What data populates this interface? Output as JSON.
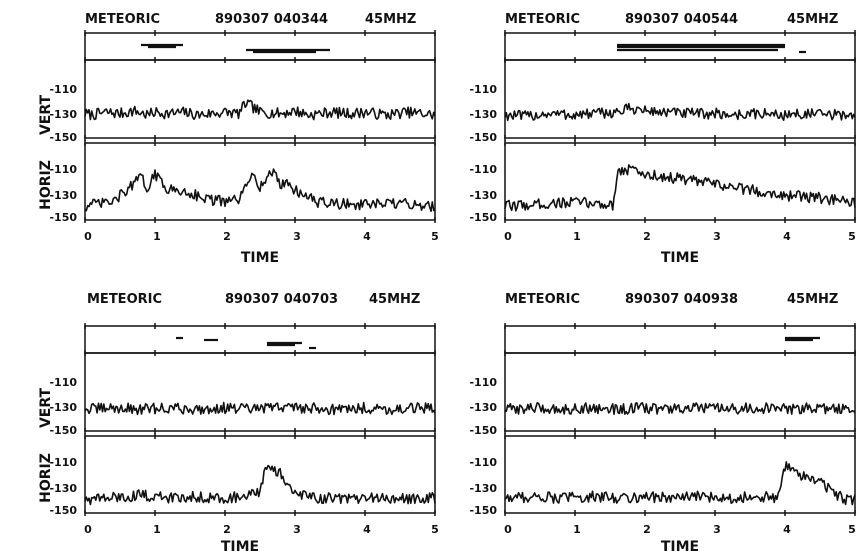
{
  "figure": {
    "row_label_vert": "VERT",
    "row_label_horiz": "HORIZ"
  },
  "chart_data": [
    {
      "type": "line",
      "title_left": "METEORIC",
      "title_mid": "890307 040344",
      "title_right": "45MHZ",
      "xlabel": "TIME",
      "xlim": [
        0,
        5
      ],
      "x_ticks": [
        "0",
        "1",
        "2",
        "3",
        "4",
        "5"
      ],
      "y_ticks": [
        "-110",
        "-130",
        "-150"
      ],
      "ylim": [
        -150,
        -100
      ],
      "echo_bars": [
        [
          0.8,
          1.4
        ],
        [
          0.9,
          1.3
        ],
        [
          2.3,
          3.5
        ],
        [
          2.4,
          3.3
        ]
      ],
      "series": [
        {
          "values": [
            [
              0,
              -135
            ],
            [
              0.1,
              -136
            ],
            [
              0.3,
              -134
            ],
            [
              0.5,
              -135
            ],
            [
              0.7,
              -133
            ],
            [
              0.9,
              -136
            ],
            [
              1.0,
              -134
            ],
            [
              1.2,
              -135
            ],
            [
              1.4,
              -134
            ],
            [
              1.6,
              -136
            ],
            [
              1.8,
              -135
            ],
            [
              2.0,
              -134
            ],
            [
              2.2,
              -135
            ],
            [
              2.3,
              -127
            ],
            [
              2.5,
              -134
            ],
            [
              2.8,
              -135
            ],
            [
              3.0,
              -133
            ],
            [
              3.2,
              -136
            ],
            [
              3.5,
              -134
            ],
            [
              3.8,
              -135
            ],
            [
              4.0,
              -134
            ],
            [
              4.3,
              -136
            ],
            [
              4.6,
              -134
            ],
            [
              4.8,
              -135
            ],
            [
              5.0,
              -136
            ]
          ]
        },
        {
          "values": [
            [
              0,
              -143
            ],
            [
              0.2,
              -141
            ],
            [
              0.4,
              -140
            ],
            [
              0.6,
              -131
            ],
            [
              0.8,
              -122
            ],
            [
              0.9,
              -130
            ],
            [
              1.0,
              -120
            ],
            [
              1.2,
              -131
            ],
            [
              1.5,
              -133
            ],
            [
              1.7,
              -137
            ],
            [
              2.0,
              -140
            ],
            [
              2.2,
              -138
            ],
            [
              2.3,
              -130
            ],
            [
              2.4,
              -117
            ],
            [
              2.5,
              -129
            ],
            [
              2.7,
              -117
            ],
            [
              2.8,
              -128
            ],
            [
              2.9,
              -125
            ],
            [
              3.0,
              -132
            ],
            [
              3.1,
              -133
            ],
            [
              3.3,
              -140
            ],
            [
              3.6,
              -141
            ],
            [
              4.0,
              -142
            ],
            [
              4.5,
              -141
            ],
            [
              5.0,
              -143
            ]
          ]
        }
      ]
    },
    {
      "type": "line",
      "title_left": "METEORIC",
      "title_mid": "890307 040544",
      "title_right": "45MHZ",
      "xlabel": "TIME",
      "xlim": [
        0,
        5
      ],
      "x_ticks": [
        "0",
        "1",
        "2",
        "3",
        "4",
        "5"
      ],
      "y_ticks": [
        "-110",
        "-130",
        "-150"
      ],
      "ylim": [
        -150,
        -100
      ],
      "echo_bars": [
        [
          1.6,
          4.0
        ],
        [
          1.6,
          4.0
        ],
        [
          1.6,
          3.9
        ],
        [
          4.2,
          4.3
        ]
      ],
      "series": [
        {
          "values": [
            [
              0,
              -136
            ],
            [
              0.3,
              -137
            ],
            [
              0.6,
              -135
            ],
            [
              1.0,
              -136
            ],
            [
              1.3,
              -135
            ],
            [
              1.6,
              -134
            ],
            [
              1.8,
              -131
            ],
            [
              2.0,
              -133
            ],
            [
              2.3,
              -134
            ],
            [
              2.6,
              -135
            ],
            [
              3.0,
              -135
            ],
            [
              3.3,
              -136
            ],
            [
              3.6,
              -135
            ],
            [
              4.0,
              -136
            ],
            [
              4.3,
              -135
            ],
            [
              4.6,
              -136
            ],
            [
              5.0,
              -136
            ]
          ]
        },
        {
          "values": [
            [
              0,
              -143
            ],
            [
              0.3,
              -142
            ],
            [
              0.6,
              -141
            ],
            [
              1.0,
              -140
            ],
            [
              1.3,
              -141
            ],
            [
              1.55,
              -142
            ],
            [
              1.6,
              -118
            ],
            [
              1.8,
              -116
            ],
            [
              2.0,
              -120
            ],
            [
              2.2,
              -121
            ],
            [
              2.5,
              -123
            ],
            [
              3.0,
              -127
            ],
            [
              3.5,
              -131
            ],
            [
              4.0,
              -135
            ],
            [
              4.5,
              -137
            ],
            [
              5.0,
              -141
            ]
          ]
        }
      ]
    },
    {
      "type": "line",
      "title_left": "METEORIC",
      "title_mid": "890307 040703",
      "title_right": "45MHZ",
      "xlabel": "TIME",
      "xlim": [
        0,
        5
      ],
      "x_ticks": [
        "0",
        "1",
        "2",
        "3",
        "4",
        "5"
      ],
      "y_ticks": [
        "-110",
        "-130",
        "-150"
      ],
      "ylim": [
        -150,
        -100
      ],
      "echo_bars": [
        [
          1.3,
          1.4
        ],
        [
          1.7,
          1.9
        ],
        [
          2.6,
          3.1
        ],
        [
          2.6,
          3.0
        ],
        [
          3.2,
          3.3
        ]
      ],
      "series": [
        {
          "values": [
            [
              0,
              -137
            ],
            [
              0.4,
              -136
            ],
            [
              0.8,
              -137
            ],
            [
              1.2,
              -136
            ],
            [
              1.6,
              -137
            ],
            [
              2.0,
              -136
            ],
            [
              2.4,
              -137
            ],
            [
              2.8,
              -135
            ],
            [
              3.2,
              -136
            ],
            [
              3.6,
              -137
            ],
            [
              4.0,
              -136
            ],
            [
              4.4,
              -137
            ],
            [
              4.8,
              -136
            ],
            [
              5.0,
              -137
            ]
          ]
        },
        {
          "values": [
            [
              0,
              -143
            ],
            [
              0.4,
              -142
            ],
            [
              0.8,
              -140
            ],
            [
              1.2,
              -142
            ],
            [
              1.6,
              -141
            ],
            [
              2.0,
              -142
            ],
            [
              2.3,
              -141
            ],
            [
              2.5,
              -138
            ],
            [
              2.6,
              -118
            ],
            [
              2.8,
              -124
            ],
            [
              2.9,
              -134
            ],
            [
              3.0,
              -140
            ],
            [
              3.4,
              -142
            ],
            [
              3.8,
              -143
            ],
            [
              4.2,
              -142
            ],
            [
              4.6,
              -143
            ],
            [
              5.0,
              -142
            ]
          ]
        }
      ]
    },
    {
      "type": "line",
      "title_left": "METEORIC",
      "title_mid": "890307 040938",
      "title_right": "45MHZ",
      "xlabel": "TIME",
      "xlim": [
        0,
        5
      ],
      "x_ticks": [
        "0",
        "1",
        "2",
        "3",
        "4",
        "5"
      ],
      "y_ticks": [
        "-110",
        "-130",
        "-150"
      ],
      "ylim": [
        -150,
        -100
      ],
      "echo_bars": [
        [
          4.0,
          4.5
        ],
        [
          4.0,
          4.4
        ]
      ],
      "series": [
        {
          "values": [
            [
              0,
              -137
            ],
            [
              0.4,
              -136
            ],
            [
              0.8,
              -137
            ],
            [
              1.2,
              -136
            ],
            [
              1.6,
              -137
            ],
            [
              2.0,
              -136
            ],
            [
              2.4,
              -137
            ],
            [
              2.8,
              -136
            ],
            [
              3.2,
              -137
            ],
            [
              3.6,
              -136
            ],
            [
              4.0,
              -137
            ],
            [
              4.4,
              -136
            ],
            [
              4.8,
              -137
            ],
            [
              5.0,
              -136
            ]
          ]
        },
        {
          "values": [
            [
              0,
              -142
            ],
            [
              0.4,
              -141
            ],
            [
              0.8,
              -142
            ],
            [
              1.2,
              -141
            ],
            [
              1.6,
              -142
            ],
            [
              2.0,
              -141
            ],
            [
              2.4,
              -142
            ],
            [
              2.8,
              -141
            ],
            [
              3.2,
              -142
            ],
            [
              3.6,
              -141
            ],
            [
              3.9,
              -142
            ],
            [
              4.0,
              -119
            ],
            [
              4.2,
              -125
            ],
            [
              4.5,
              -130
            ],
            [
              4.7,
              -138
            ],
            [
              4.85,
              -143
            ],
            [
              5.0,
              -143
            ]
          ]
        }
      ]
    }
  ]
}
